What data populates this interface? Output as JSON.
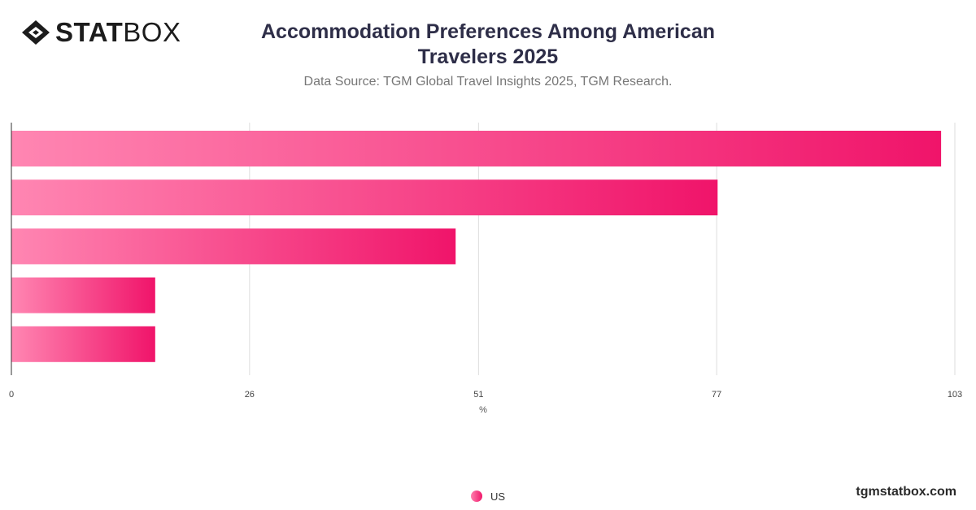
{
  "brand": {
    "logo_bold": "STAT",
    "logo_light": "BOX"
  },
  "header": {
    "title_line1": "Accommodation Preferences Among American",
    "title_line2": "Travelers 2025",
    "subtitle": "Data Source: TGM Global Travel Insights 2025, TGM Research."
  },
  "footer": {
    "site": "tgmstatbox.com"
  },
  "colors": {
    "bar_start": "#ff86b2",
    "bar_end": "#f0146a",
    "grid": "#dddddd",
    "axis": "#333333"
  },
  "chart_data": {
    "type": "bar",
    "orientation": "horizontal",
    "categories": [
      "",
      "",
      "",
      "",
      ""
    ],
    "series": [
      {
        "name": "US",
        "values": [
          101.5,
          77.1,
          48.5,
          15.7,
          15.7
        ]
      }
    ],
    "xlabel": "%",
    "ylabel": "",
    "xlim": [
      0,
      103
    ],
    "xticks": [
      "0",
      "26",
      "51",
      "77",
      "103"
    ],
    "grid": true,
    "legend_position": "bottom-center"
  }
}
